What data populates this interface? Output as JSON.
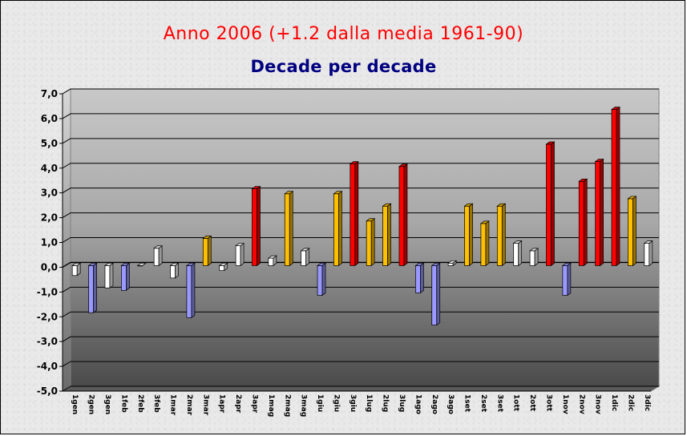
{
  "chart_data": {
    "type": "bar",
    "title": "Anno 2006 (+1.2 dalla media 1961-90)",
    "subtitle": "Decade per decade",
    "xlabel": "",
    "ylabel": "",
    "ylim": [
      -5,
      7
    ],
    "yticks": [
      "-5,0",
      "-4,0",
      "-3,0",
      "-2,0",
      "-1,0",
      "0,0",
      "1,0",
      "2,0",
      "3,0",
      "4,0",
      "5,0",
      "6,0",
      "7,0"
    ],
    "grid": true,
    "legend": "none",
    "colors": {
      "title": "#ff0000",
      "subtitle": "#000080",
      "red": "#ff0000",
      "orange": "#ffc000",
      "white": "#ffffff",
      "blue": "#9999ff"
    },
    "categories": [
      "1gen",
      "2gen",
      "3gen",
      "1feb",
      "2feb",
      "3feb",
      "1mar",
      "2mar",
      "3mar",
      "1apr",
      "2apr",
      "3apr",
      "1mag",
      "2mag",
      "3mag",
      "1giu",
      "2giu",
      "3giu",
      "1lug",
      "2lug",
      "3lug",
      "1ago",
      "2ago",
      "3ago",
      "1set",
      "2set",
      "3set",
      "1ott",
      "2ott",
      "3ott",
      "1nov",
      "2nov",
      "3nov",
      "1dic",
      "2dic",
      "3dic"
    ],
    "values": [
      -0.4,
      -1.9,
      -0.9,
      -1.0,
      0.0,
      0.7,
      -0.5,
      -2.1,
      1.1,
      -0.2,
      0.8,
      3.1,
      0.3,
      2.9,
      0.6,
      -1.2,
      2.9,
      4.1,
      1.8,
      2.4,
      4.0,
      -1.1,
      -2.4,
      0.1,
      2.4,
      1.7,
      2.4,
      0.9,
      0.6,
      4.9,
      -1.2,
      3.4,
      4.2,
      6.3,
      2.7,
      0.9
    ],
    "bar_colors": [
      "white",
      "blue",
      "white",
      "blue",
      "white",
      "white",
      "white",
      "blue",
      "orange",
      "white",
      "white",
      "red",
      "white",
      "orange",
      "white",
      "blue",
      "orange",
      "red",
      "orange",
      "orange",
      "red",
      "blue",
      "blue",
      "white",
      "orange",
      "orange",
      "orange",
      "white",
      "white",
      "red",
      "blue",
      "red",
      "red",
      "red",
      "orange",
      "white"
    ]
  }
}
